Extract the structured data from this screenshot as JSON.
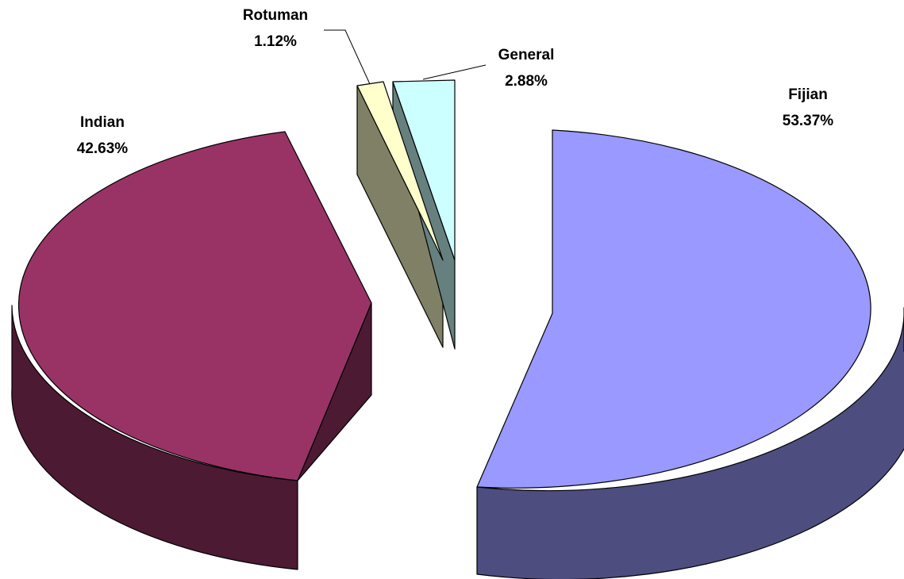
{
  "chart_data": {
    "type": "pie",
    "style": "3d-exploded",
    "slices": [
      {
        "name": "Fijian",
        "value": 53.37,
        "label": "53.37%",
        "top_color": "#9999FF",
        "side_color": "#4D4D80"
      },
      {
        "name": "Indian",
        "value": 42.63,
        "label": "42.63%",
        "top_color": "#993366",
        "side_color": "#4D1A33"
      },
      {
        "name": "Rotuman",
        "value": 1.12,
        "label": "1.12%",
        "top_color": "#FFFFCC",
        "side_color": "#808066"
      },
      {
        "name": "General",
        "value": 2.88,
        "label": "2.88%",
        "top_color": "#CCFFFF",
        "side_color": "#668080"
      }
    ]
  }
}
